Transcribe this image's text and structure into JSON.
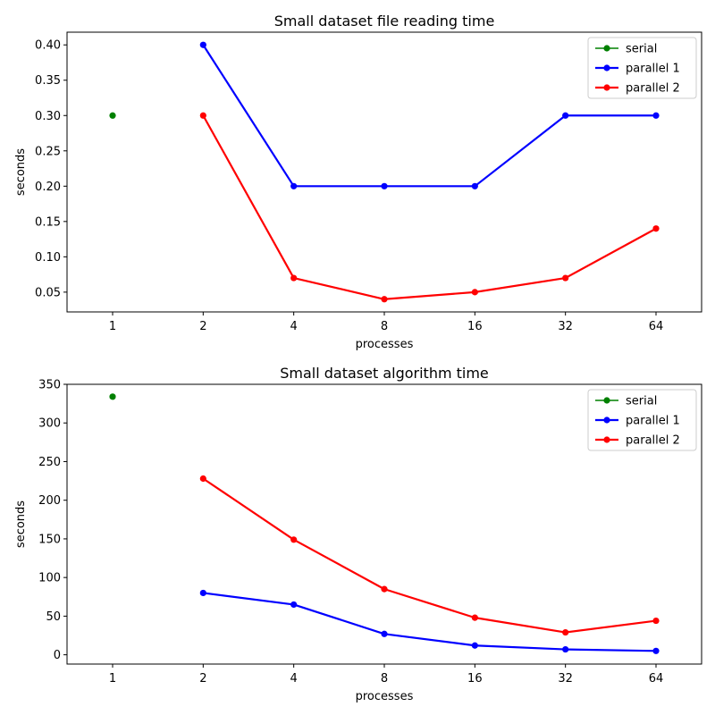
{
  "chart_data": [
    {
      "type": "line",
      "title": "Small dataset file reading time",
      "xlabel": "processes",
      "ylabel": "seconds",
      "categories": [
        "1",
        "2",
        "4",
        "8",
        "16",
        "32",
        "64"
      ],
      "ylim": [
        0.022,
        0.418
      ],
      "yticks": [
        0.05,
        0.1,
        0.15,
        0.2,
        0.25,
        0.3,
        0.35,
        0.4
      ],
      "ytick_labels": [
        "0.05",
        "0.10",
        "0.15",
        "0.20",
        "0.25",
        "0.30",
        "0.35",
        "0.40"
      ],
      "legend": "top-right",
      "grid": false,
      "series": [
        {
          "name": "serial",
          "color": "#008000",
          "values": [
            0.3,
            null,
            null,
            null,
            null,
            null,
            null
          ]
        },
        {
          "name": "parallel 1",
          "color": "#0000ff",
          "values": [
            null,
            0.4,
            0.2,
            0.2,
            0.2,
            0.3,
            0.3
          ]
        },
        {
          "name": "parallel 2",
          "color": "#ff0000",
          "values": [
            null,
            0.3,
            0.07,
            0.04,
            0.05,
            0.07,
            0.14
          ]
        }
      ]
    },
    {
      "type": "line",
      "title": "Small dataset algorithm time",
      "xlabel": "processes",
      "ylabel": "seconds",
      "categories": [
        "1",
        "2",
        "4",
        "8",
        "16",
        "32",
        "64"
      ],
      "ylim": [
        -12,
        350
      ],
      "yticks": [
        0,
        50,
        100,
        150,
        200,
        250,
        300,
        350
      ],
      "ytick_labels": [
        "0",
        "50",
        "100",
        "150",
        "200",
        "250",
        "300",
        "350"
      ],
      "legend": "top-right",
      "grid": false,
      "series": [
        {
          "name": "serial",
          "color": "#008000",
          "values": [
            334,
            null,
            null,
            null,
            null,
            null,
            null
          ]
        },
        {
          "name": "parallel 1",
          "color": "#0000ff",
          "values": [
            null,
            80,
            65,
            27,
            12,
            7,
            5
          ]
        },
        {
          "name": "parallel 2",
          "color": "#ff0000",
          "values": [
            null,
            228,
            149,
            85,
            48,
            29,
            44
          ]
        }
      ]
    }
  ]
}
